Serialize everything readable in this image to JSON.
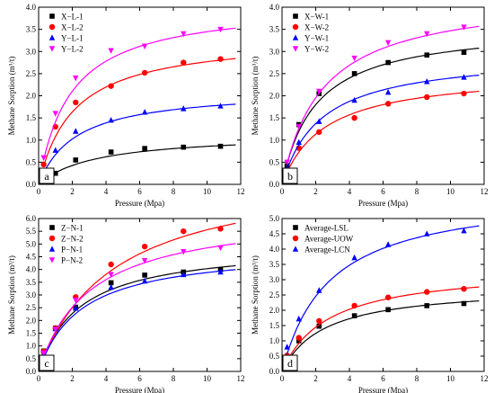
{
  "chart_data": [
    {
      "type": "scatter",
      "panel_label": "a",
      "xlabel": "Pressure (Mpa)",
      "ylabel": "Methane Sorption (m³/t)",
      "xlim": [
        0,
        12
      ],
      "ylim": [
        0,
        4.0
      ],
      "xticks": [
        0,
        2,
        4,
        6,
        8,
        10,
        12
      ],
      "yticks": [
        0.0,
        0.5,
        1.0,
        1.5,
        2.0,
        2.5,
        3.0,
        3.5,
        4.0
      ],
      "legend_position": "top-left",
      "grid": false,
      "series": [
        {
          "name": "X−L-1",
          "color": "#000000",
          "marker": "square",
          "x": [
            0.3,
            1.0,
            2.2,
            4.3,
            6.3,
            8.6,
            10.8
          ],
          "y": [
            0.12,
            0.25,
            0.55,
            0.73,
            0.81,
            0.84,
            0.86
          ],
          "fit": {
            "vl": 1.15,
            "pl": 3.4
          }
        },
        {
          "name": "X−L-2",
          "color": "#ff0000",
          "marker": "circle",
          "x": [
            0.3,
            1.0,
            2.2,
            4.3,
            6.3,
            8.6,
            10.8
          ],
          "y": [
            0.45,
            1.3,
            1.85,
            2.22,
            2.52,
            2.75,
            2.83
          ],
          "fit": {
            "vl": 3.35,
            "pl": 2.1
          }
        },
        {
          "name": "Y−L-1",
          "color": "#0000ff",
          "marker": "triangle-up",
          "x": [
            0.3,
            1.0,
            2.2,
            4.3,
            6.3,
            8.6,
            10.8
          ],
          "y": [
            0.3,
            0.77,
            1.2,
            1.45,
            1.63,
            1.71,
            1.77
          ],
          "fit": {
            "vl": 2.15,
            "pl": 2.2
          }
        },
        {
          "name": "Y−L-2",
          "color": "#ff00ff",
          "marker": "triangle-down",
          "x": [
            0.3,
            1.0,
            2.2,
            4.3,
            6.3,
            8.6,
            10.8
          ],
          "y": [
            0.6,
            1.6,
            2.4,
            3.02,
            3.12,
            3.4,
            3.5
          ],
          "fit": {
            "vl": 4.1,
            "pl": 1.9
          }
        }
      ]
    },
    {
      "type": "scatter",
      "panel_label": "b",
      "xlabel": "Pressure (Mpa)",
      "ylabel": "Methane Sorption (m³/t)",
      "xlim": [
        0,
        12
      ],
      "ylim": [
        0,
        4.0
      ],
      "xticks": [
        0,
        2,
        4,
        6,
        8,
        10,
        12
      ],
      "yticks": [
        0.0,
        0.5,
        1.0,
        1.5,
        2.0,
        2.5,
        3.0,
        3.5,
        4.0
      ],
      "legend_position": "top-left",
      "grid": false,
      "series": [
        {
          "name": "X−W-1",
          "color": "#000000",
          "marker": "square",
          "x": [
            0.3,
            1.0,
            2.2,
            4.3,
            6.3,
            8.6,
            10.8
          ],
          "y": [
            0.42,
            1.35,
            2.05,
            2.5,
            2.75,
            2.92,
            2.98
          ],
          "fit": {
            "vl": 3.6,
            "pl": 2.0
          }
        },
        {
          "name": "X−W-2",
          "color": "#ff0000",
          "marker": "circle",
          "x": [
            0.3,
            1.0,
            2.2,
            4.3,
            6.3,
            8.6,
            10.8
          ],
          "y": [
            0.3,
            0.82,
            1.18,
            1.5,
            1.82,
            1.97,
            2.05
          ],
          "fit": {
            "vl": 2.55,
            "pl": 2.5
          }
        },
        {
          "name": "Y−W-1",
          "color": "#0000ff",
          "marker": "triangle-up",
          "x": [
            0.3,
            1.0,
            2.2,
            4.3,
            6.3,
            8.6,
            10.8
          ],
          "y": [
            0.35,
            0.95,
            1.42,
            1.9,
            2.08,
            2.32,
            2.42
          ],
          "fit": {
            "vl": 2.95,
            "pl": 2.3
          }
        },
        {
          "name": "Y−W-2",
          "color": "#ff00ff",
          "marker": "triangle-down",
          "x": [
            0.3,
            1.0,
            2.2,
            4.3,
            6.3,
            8.6,
            10.8
          ],
          "y": [
            0.5,
            1.3,
            2.1,
            2.85,
            3.2,
            3.4,
            3.55
          ],
          "fit": {
            "vl": 4.3,
            "pl": 2.4
          }
        }
      ]
    },
    {
      "type": "scatter",
      "panel_label": "c",
      "xlabel": "Pressure (Mpa)",
      "ylabel": "Methane Sorption (m³/t)",
      "xlim": [
        0,
        12
      ],
      "ylim": [
        0,
        6.0
      ],
      "xticks": [
        0,
        2,
        4,
        6,
        8,
        10,
        12
      ],
      "yticks": [
        0.0,
        0.5,
        1.0,
        1.5,
        2.0,
        2.5,
        3.0,
        3.5,
        4.0,
        4.5,
        5.0,
        5.5,
        6.0
      ],
      "legend_position": "top-left",
      "grid": false,
      "series": [
        {
          "name": "Z−N-1",
          "color": "#000000",
          "marker": "square",
          "x": [
            0.3,
            1.0,
            2.2,
            4.3,
            6.3,
            8.6,
            10.8
          ],
          "y": [
            0.8,
            1.7,
            2.52,
            3.48,
            3.78,
            3.9,
            4.0
          ],
          "fit": {
            "vl": 5.0,
            "pl": 2.4
          }
        },
        {
          "name": "Z−N-2",
          "color": "#ff0000",
          "marker": "circle",
          "x": [
            0.3,
            1.0,
            2.2,
            4.3,
            6.3,
            8.6,
            10.8
          ],
          "y": [
            0.78,
            1.7,
            2.92,
            4.2,
            4.9,
            5.5,
            5.6
          ],
          "fit": {
            "vl": 8.0,
            "pl": 4.4
          }
        },
        {
          "name": "P−N-1",
          "color": "#0000ff",
          "marker": "triangle-up",
          "x": [
            0.3,
            1.0,
            2.2,
            4.3,
            6.3,
            8.6,
            10.8
          ],
          "y": [
            0.7,
            1.68,
            2.48,
            3.3,
            3.55,
            3.8,
            3.9
          ],
          "fit": {
            "vl": 4.85,
            "pl": 2.5
          }
        },
        {
          "name": "P−N-2",
          "color": "#ff00ff",
          "marker": "triangle-down",
          "x": [
            0.3,
            1.0,
            2.2,
            4.3,
            6.3,
            8.6,
            10.8
          ],
          "y": [
            0.72,
            1.65,
            2.8,
            3.8,
            4.35,
            4.7,
            4.85
          ],
          "fit": {
            "vl": 6.3,
            "pl": 3.0
          }
        }
      ]
    },
    {
      "type": "scatter",
      "panel_label": "d",
      "xlabel": "Pressure (Mpa)",
      "ylabel": "Methane Sorption (m³/t)",
      "xlim": [
        0,
        12
      ],
      "ylim": [
        0,
        5.0
      ],
      "xticks": [
        0,
        2,
        4,
        6,
        8,
        10,
        12
      ],
      "yticks": [
        0.0,
        0.5,
        1.0,
        1.5,
        2.0,
        2.5,
        3.0,
        3.5,
        4.0,
        4.5,
        5.0
      ],
      "legend_position": "top-left",
      "grid": false,
      "series": [
        {
          "name": "Average-LSL",
          "color": "#000000",
          "marker": "square",
          "x": [
            0.3,
            1.0,
            2.2,
            4.3,
            6.3,
            8.6,
            10.8
          ],
          "y": [
            0.45,
            1.0,
            1.48,
            1.82,
            2.02,
            2.15,
            2.22
          ],
          "fit": {
            "vl": 2.8,
            "pl": 2.5
          }
        },
        {
          "name": "Average-UOW",
          "color": "#ff0000",
          "marker": "circle",
          "x": [
            0.3,
            1.0,
            2.2,
            4.3,
            6.3,
            8.6,
            10.8
          ],
          "y": [
            0.52,
            1.1,
            1.65,
            2.15,
            2.42,
            2.6,
            2.7
          ],
          "fit": {
            "vl": 3.4,
            "pl": 2.7
          }
        },
        {
          "name": "Average-LCN",
          "color": "#0000ff",
          "marker": "triangle-up",
          "x": [
            0.3,
            1.0,
            2.2,
            4.3,
            6.3,
            8.6,
            10.8
          ],
          "y": [
            0.8,
            1.72,
            2.65,
            3.72,
            4.15,
            4.5,
            4.6
          ],
          "fit": {
            "vl": 5.9,
            "pl": 2.8
          }
        }
      ]
    }
  ]
}
